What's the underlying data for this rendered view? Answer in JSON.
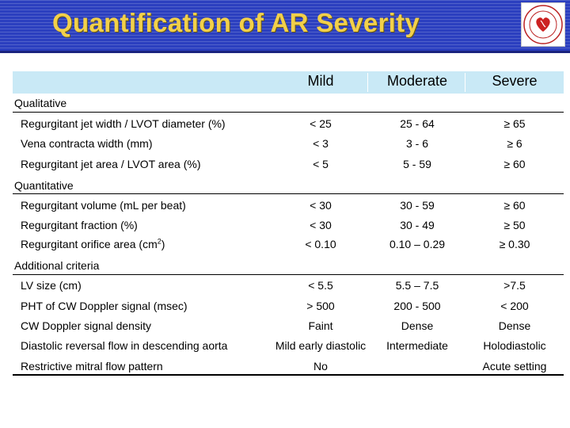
{
  "title": "Quantification of AR Severity",
  "header": {
    "mild": "Mild",
    "moderate": "Moderate",
    "severe": "Severe"
  },
  "sections": {
    "qualitative": "Qualitative",
    "quantitative": "Quantitative",
    "additional": "Additional criteria"
  },
  "rows": [
    {
      "label": "Regurgitant jet width / LVOT diameter (%)",
      "mild": "< 25",
      "moderate": "25 - 64",
      "severe": "≥ 65"
    },
    {
      "label": "Vena contracta width (mm)",
      "mild": "< 3",
      "moderate": "3 - 6",
      "severe": "≥ 6"
    },
    {
      "label": "Regurgitant jet area / LVOT area (%)",
      "mild": "< 5",
      "moderate": "5 - 59",
      "severe": "≥ 60"
    },
    {
      "label": "Regurgitant volume (mL per beat)",
      "mild": "< 30",
      "moderate": "30 - 59",
      "severe": "≥ 60"
    },
    {
      "label": "Regurgitant fraction (%)",
      "mild": "< 30",
      "moderate": "30 - 49",
      "severe": "≥ 50"
    },
    {
      "label_main": "Regurgitant orifice area (cm",
      "label_sup": "2",
      "label_end": ")",
      "mild": "< 0.10",
      "moderate": "0.10 – 0.29",
      "severe": "≥ 0.30"
    },
    {
      "label": "LV size (cm)",
      "mild": "< 5.5",
      "moderate": "5.5 – 7.5",
      "severe": ">7.5"
    },
    {
      "label": "PHT of CW Doppler signal (msec)",
      "mild": "> 500",
      "moderate": "200 - 500",
      "severe": "< 200"
    },
    {
      "label": "CW Doppler signal density",
      "mild": "Faint",
      "moderate": "Dense",
      "severe": "Dense"
    },
    {
      "label": "Diastolic reversal flow in descending aorta",
      "mild": "Mild early diastolic",
      "moderate": "Intermediate",
      "severe": "Holodiastolic"
    },
    {
      "label": "Restrictive mitral flow pattern",
      "mild": "No",
      "moderate": "",
      "severe": "Acute setting"
    }
  ],
  "colors": {
    "banner": "#2b3fbf",
    "title": "#f2d04a",
    "header_row": "#c9e9f6"
  },
  "logo_icon": "hospital-logo-icon"
}
